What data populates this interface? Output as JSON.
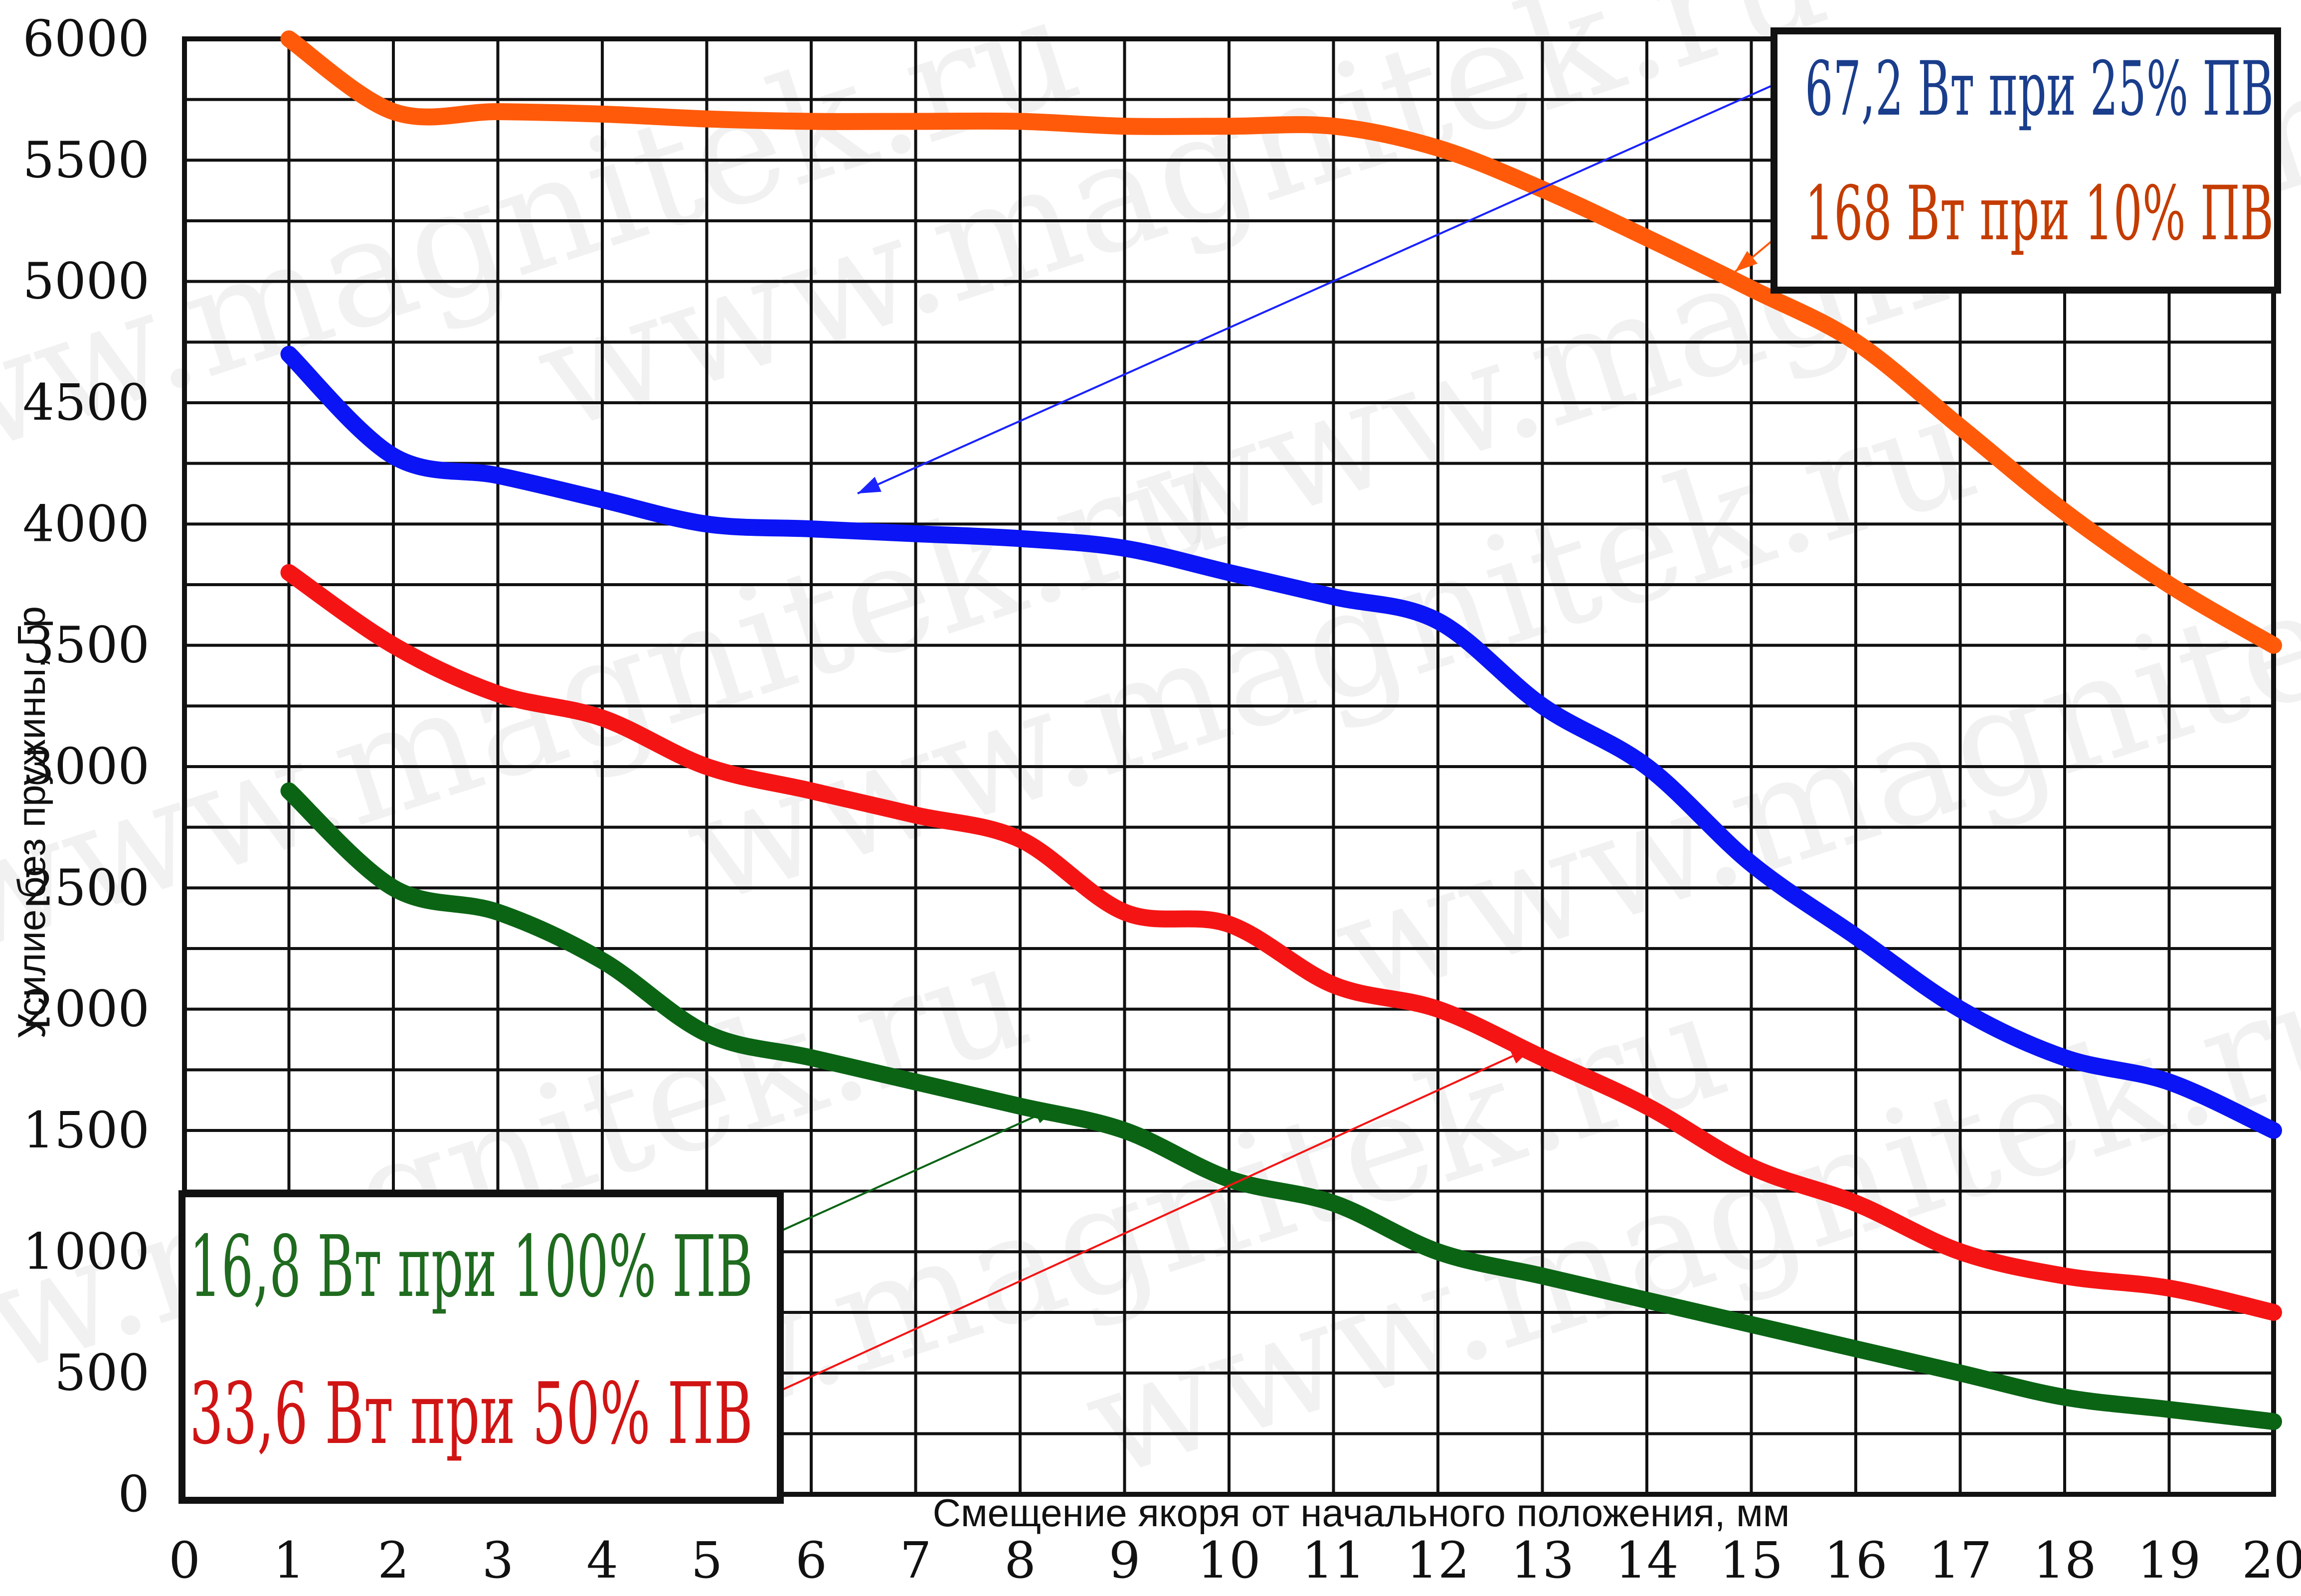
{
  "chart_data": {
    "type": "line",
    "xlabel": "Смещение якоря от начального положения, мм",
    "ylabel": "Усилие без пружины, Гр",
    "xlim": [
      0,
      20
    ],
    "ylim": [
      0,
      6000
    ],
    "x_ticks": [
      "0",
      "1",
      "2",
      "3",
      "4",
      "5",
      "6",
      "7",
      "8",
      "9",
      "10",
      "11",
      "12",
      "13",
      "14",
      "15",
      "16",
      "17",
      "18",
      "19",
      "20"
    ],
    "y_ticks": [
      "0",
      "500",
      "1000",
      "1500",
      "2000",
      "2500",
      "3000",
      "3500",
      "4000",
      "4500",
      "5000",
      "5500",
      "6000"
    ],
    "grid": true,
    "watermark": "www.magnitek.ru",
    "x": [
      1,
      2,
      3,
      4,
      5,
      6,
      7,
      8,
      9,
      10,
      11,
      12,
      13,
      14,
      15,
      16,
      17,
      18,
      19,
      20
    ],
    "series": [
      {
        "name": "168 Вт при 10% ПВ",
        "color": "#ff5a0a",
        "values": [
          6000,
          5700,
          5700,
          5690,
          5670,
          5660,
          5660,
          5660,
          5640,
          5640,
          5640,
          5550,
          5380,
          5180,
          4970,
          4750,
          4400,
          4050,
          3750,
          3500
        ]
      },
      {
        "name": "67,2 Вт при 25% ПВ",
        "color": "#0a14f5",
        "values": [
          4700,
          4280,
          4200,
          4100,
          4000,
          3980,
          3960,
          3940,
          3900,
          3800,
          3700,
          3600,
          3250,
          3000,
          2600,
          2300,
          2000,
          1800,
          1700,
          1500
        ]
      },
      {
        "name": "33,6 Вт при 50% ПВ",
        "color": "#f51414",
        "values": [
          3800,
          3500,
          3300,
          3200,
          3000,
          2900,
          2800,
          2700,
          2400,
          2350,
          2100,
          2000,
          1800,
          1600,
          1350,
          1200,
          1000,
          900,
          850,
          750
        ]
      },
      {
        "name": "16,8 Вт при 100% ПВ",
        "color": "#0a6414",
        "values": [
          2900,
          2500,
          2400,
          2200,
          1900,
          1800,
          1700,
          1600,
          1500,
          1300,
          1200,
          1000,
          900,
          800,
          700,
          600,
          500,
          400,
          350,
          300
        ]
      }
    ],
    "legends": [
      {
        "position": "top-right",
        "entries": [
          {
            "text": "67,2 Вт при 25% ПВ",
            "color": "#1a3d8c"
          },
          {
            "text": "168 Вт при 10% ПВ",
            "color": "#c43c00"
          }
        ]
      },
      {
        "position": "bottom-left",
        "entries": [
          {
            "text": "16,8 Вт при 100% ПВ",
            "color": "#1f6b1f"
          },
          {
            "text": "33,6 Вт при 50% ПВ",
            "color": "#d01414"
          }
        ]
      }
    ]
  }
}
